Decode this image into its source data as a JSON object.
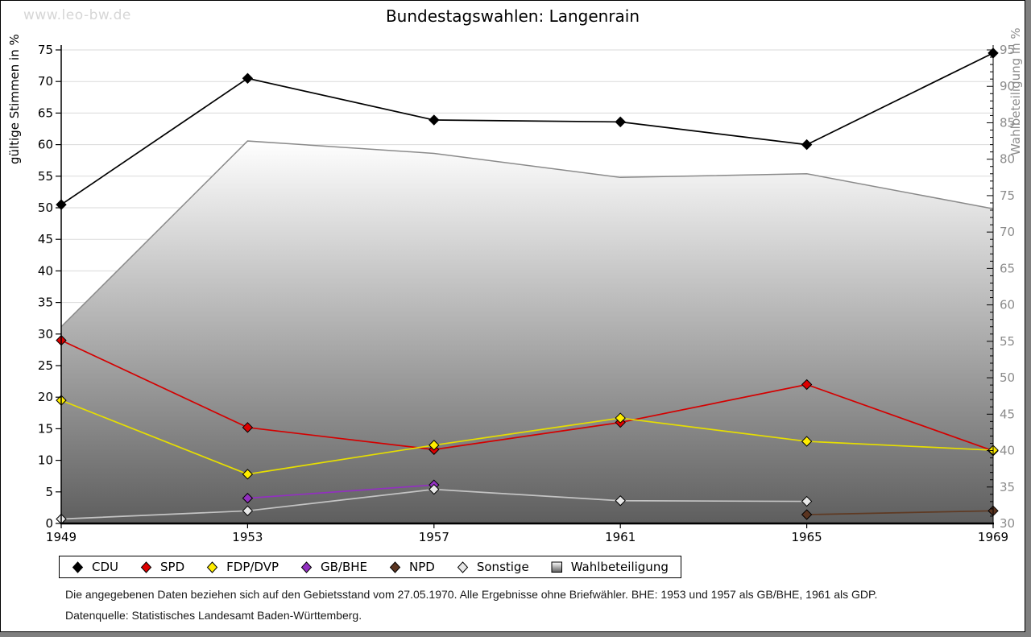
{
  "page": {
    "watermark": "www.leo-bw.de"
  },
  "chart_data": {
    "type": "line",
    "title": "Bundestagswahlen: Langenrain",
    "x": [
      1949,
      1953,
      1957,
      1961,
      1965,
      1969
    ],
    "ylabel_left": "gültige Stimmen in %",
    "ylabel_right": "Wahlbeteiligung in %",
    "ylim_left": [
      0,
      75
    ],
    "ytick_step_left": 5,
    "ylim_right": [
      30,
      95
    ],
    "ytick_step_right": 5,
    "grid": true,
    "legend_position": "bottom",
    "series": [
      {
        "name": "CDU",
        "axis": "left",
        "line_color": "#000000",
        "marker_color": "#000000",
        "values": [
          50.5,
          70.5,
          63.9,
          63.6,
          60.0,
          74.5
        ]
      },
      {
        "name": "SPD",
        "axis": "left",
        "line_color": "#d40000",
        "marker_color": "#dd0000",
        "values": [
          29.0,
          15.2,
          11.7,
          16.0,
          22.0,
          11.5
        ]
      },
      {
        "name": "FDP/DVP",
        "axis": "left",
        "line_color": "#e6de00",
        "marker_color": "#ffed00",
        "values": [
          19.5,
          7.8,
          12.4,
          16.7,
          13.0,
          11.6
        ]
      },
      {
        "name": "GB/BHE",
        "axis": "left",
        "line_color": "#9230c0",
        "marker_color": "#9230c0",
        "values": [
          null,
          4.0,
          6.1,
          null,
          null,
          null
        ]
      },
      {
        "name": "NPD",
        "axis": "left",
        "line_color": "#5f3a23",
        "marker_color": "#5a3420",
        "values": [
          null,
          null,
          null,
          null,
          1.4,
          2.0
        ]
      },
      {
        "name": "Sonstige",
        "axis": "left",
        "line_color": "#c4c4c4",
        "marker_color": "#e8e8e8",
        "values": [
          0.7,
          2.0,
          5.4,
          3.6,
          3.5,
          null
        ]
      }
    ],
    "area_series": {
      "name": "Wahlbeteiligung",
      "axis": "right",
      "stroke_color": "#8a8a8a",
      "fill_gradient": [
        "#ffffff",
        "#5e5e5e"
      ],
      "values": [
        57.0,
        82.5,
        80.8,
        77.5,
        78.0,
        73.2
      ]
    }
  },
  "footer": {
    "line1": "Die angegebenen Daten beziehen sich auf den Gebietsstand vom 27.05.1970. Alle Ergebnisse ohne Briefwähler. BHE: 1953 und 1957 als GB/BHE, 1961 als GDP.",
    "line2": "Datenquelle: Statistisches Landesamt Baden-Württemberg."
  }
}
